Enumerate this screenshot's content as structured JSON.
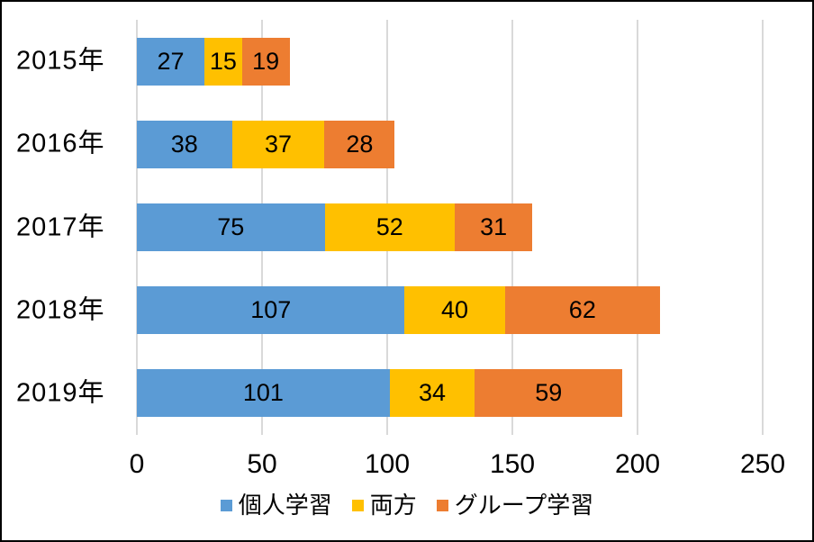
{
  "chart_data": {
    "type": "bar",
    "orientation": "horizontal",
    "stacked": true,
    "title": "",
    "xlabel": "",
    "ylabel": "",
    "categories": [
      "2015年",
      "2016年",
      "2017年",
      "2018年",
      "2019年"
    ],
    "series": [
      {
        "key": "individual-study",
        "name": "個人学習",
        "color": "#5B9BD5",
        "values": [
          27,
          38,
          75,
          107,
          101
        ]
      },
      {
        "key": "both",
        "name": "両方",
        "color": "#FFC000",
        "values": [
          15,
          37,
          52,
          40,
          34
        ]
      },
      {
        "key": "group-study",
        "name": "グループ学習",
        "color": "#ED7D31",
        "values": [
          19,
          28,
          31,
          62,
          59
        ]
      }
    ],
    "x_ticks": [
      0,
      50,
      100,
      150,
      200,
      250
    ],
    "xlim": [
      0,
      250
    ],
    "grid": "vertical",
    "gridline_color": "#D9D9D9",
    "data_labels": true,
    "data_label_color": "#000000",
    "legend_position": "bottom",
    "background_color": "#FFFFFF",
    "frame_border_color": "#000000"
  }
}
